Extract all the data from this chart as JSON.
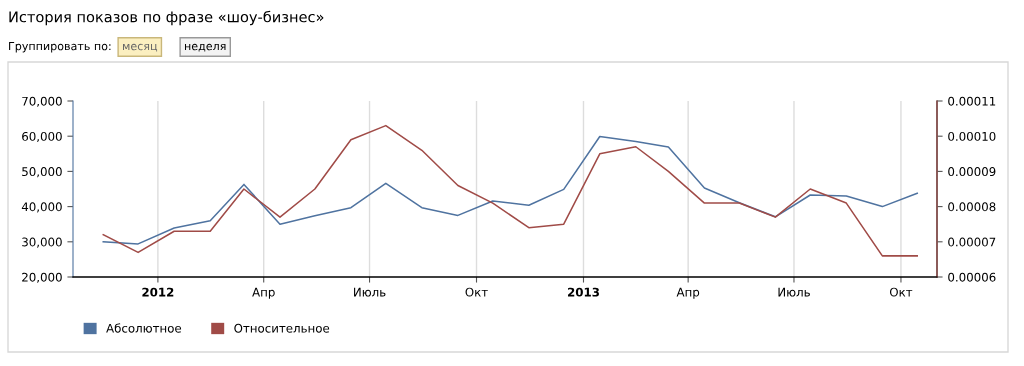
{
  "chart_data": {
    "type": "line",
    "title": "История показов по фразе «шоу-бизнес»",
    "annotations": [
      "Группировать по:",
      "месяц",
      "неделя"
    ],
    "x": [
      "2011-11-15",
      "2011-12-15",
      "2012-01-15",
      "2012-02-15",
      "2012-03-15",
      "2012-04-15",
      "2012-05-15",
      "2012-06-15",
      "2012-07-15",
      "2012-08-15",
      "2012-09-15",
      "2012-10-15",
      "2012-11-15",
      "2012-12-15",
      "2013-01-15",
      "2013-02-15",
      "2013-03-15",
      "2013-04-15",
      "2013-05-15",
      "2013-06-15",
      "2013-07-15",
      "2013-08-15",
      "2013-09-15",
      "2013-10-15"
    ],
    "series": [
      {
        "name": "Абсолютное",
        "color": "#4f73a0",
        "values": [
          30000,
          29400,
          33900,
          36000,
          46300,
          35000,
          37400,
          39700,
          46600,
          39700,
          37500,
          41600,
          40400,
          44900,
          59900,
          58500,
          56900,
          45300,
          41100,
          37100,
          43300,
          43000,
          40000,
          43800
        ]
      },
      {
        "name": "Относительное",
        "color": "#a04b47",
        "axis": "y2",
        "values": [
          7.2e-05,
          6.7e-05,
          7.3e-05,
          7.3e-05,
          8.5e-05,
          7.7e-05,
          8.5e-05,
          9.9e-05,
          0.000103,
          9.6e-05,
          8.6e-05,
          8.1e-05,
          7.4e-05,
          7.5e-05,
          9.5e-05,
          9.7e-05,
          9e-05,
          8.1e-05,
          8.1e-05,
          7.7e-05,
          8.5e-05,
          8.1e-05,
          6.6e-05,
          6.6e-05
        ]
      }
    ],
    "xlim": [
      "2011-10-20",
      "2013-11-01"
    ],
    "xticks": [
      {
        "value": "2012-01-01",
        "label": "2012"
      },
      {
        "value": "2012-04-01",
        "label": "Апр"
      },
      {
        "value": "2012-07-01",
        "label": "Июль"
      },
      {
        "value": "2012-10-01",
        "label": "Окт"
      },
      {
        "value": "2013-01-01",
        "label": "2013"
      },
      {
        "value": "2013-04-01",
        "label": "Апр"
      },
      {
        "value": "2013-07-01",
        "label": "Июль"
      },
      {
        "value": "2013-10-01",
        "label": "Окт"
      }
    ],
    "ylim": [
      20000,
      70000
    ],
    "yticks": [
      {
        "value": 20000,
        "label": "20,000"
      },
      {
        "value": 30000,
        "label": "30,000"
      },
      {
        "value": 40000,
        "label": "40,000"
      },
      {
        "value": 50000,
        "label": "50,000"
      },
      {
        "value": 60000,
        "label": "60,000"
      },
      {
        "value": 70000,
        "label": "70,000"
      }
    ],
    "y2lim": [
      6e-05,
      0.00011
    ],
    "y2ticks": [
      {
        "value": 6e-05,
        "label": "0.00006"
      },
      {
        "value": 7e-05,
        "label": "0.00007"
      },
      {
        "value": 8e-05,
        "label": "0.00008"
      },
      {
        "value": 9e-05,
        "label": "0.00009"
      },
      {
        "value": 0.0001,
        "label": "0.00010"
      },
      {
        "value": 0.00011,
        "label": "0.00011"
      }
    ],
    "grid": "x",
    "legend": "bottom left",
    "marker": "none",
    "line_style": "solid"
  }
}
